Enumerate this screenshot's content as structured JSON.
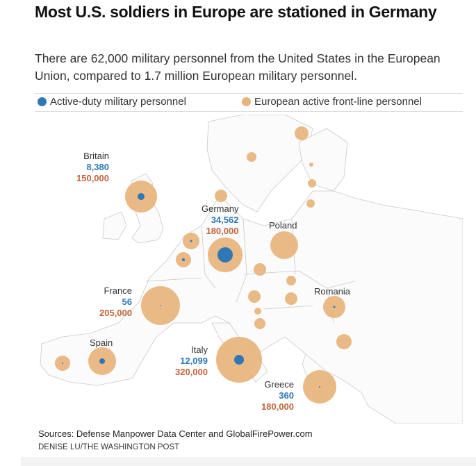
{
  "title": "Most U.S. soldiers in Europe are stationed in Germany",
  "subtitle": "There are 62,000 military personnel from the United States in the European Union, compared to 1.7 million European military personnel.",
  "legend": {
    "us": "Active-duty military personnel",
    "eu": "European active front-line personnel",
    "us_color": "#2f78b5",
    "eu_color": "#e8b47c"
  },
  "countries": [
    {
      "name": "Britain",
      "us": "8,380",
      "eu": "150,000"
    },
    {
      "name": "Germany",
      "us": "34,562",
      "eu": "180,000"
    },
    {
      "name": "Poland"
    },
    {
      "name": "France",
      "us": "56",
      "eu": "205,000"
    },
    {
      "name": "Romania"
    },
    {
      "name": "Spain"
    },
    {
      "name": "Italy",
      "us": "12,099",
      "eu": "320,000"
    },
    {
      "name": "Greece",
      "us": "360",
      "eu": "180,000"
    }
  ],
  "sources": "Sources: Defense Manpower Data Center and GlobalFirePower.com",
  "credit": "DENISE LU/THE WASHINGTON POST"
}
